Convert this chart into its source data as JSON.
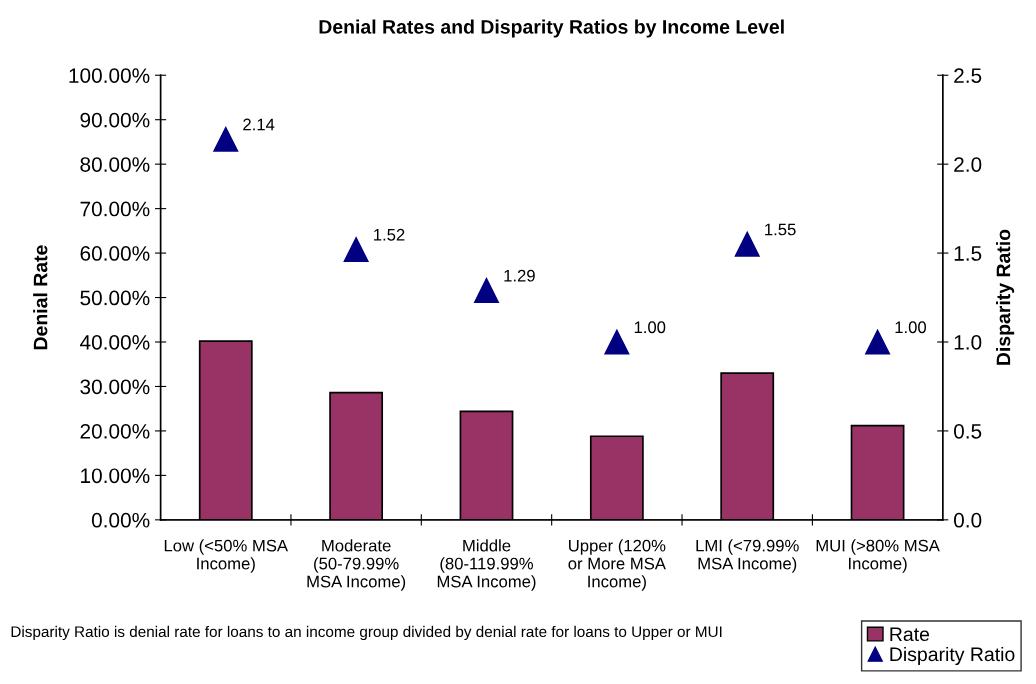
{
  "chart_data": {
    "type": "bar",
    "title": "Denial Rates and Disparity Ratios by Income Level",
    "categories": [
      "Low (<50% MSA Income)",
      "Moderate (50-79.99% MSA Income)",
      "Middle (80-119.99% MSA Income)",
      "Upper (120% or More MSA Income)",
      "LMI (<79.99% MSA Income)",
      "MUI (>80% MSA Income)"
    ],
    "series": [
      {
        "name": "Rate",
        "color": "#993366",
        "values": [
          40.2,
          28.6,
          24.4,
          18.8,
          33.0,
          21.2
        ]
      },
      {
        "name": "Disparity Ratio",
        "type": "scatter",
        "axis": "y2",
        "marker": "triangle",
        "color": "#000080",
        "values": [
          2.14,
          1.52,
          1.29,
          1.0,
          1.55,
          1.0
        ],
        "value_labels": [
          "2.14",
          "1.52",
          "1.29",
          "1.00",
          "1.55",
          "1.00"
        ]
      }
    ],
    "ylabel": "Denial Rate",
    "y2label": "Disparity Ratio",
    "ylim": [
      0,
      100
    ],
    "yticks": [
      {
        "value": 0,
        "label": "0.00%"
      },
      {
        "value": 10,
        "label": "10.00%"
      },
      {
        "value": 20,
        "label": "20.00%"
      },
      {
        "value": 30,
        "label": "30.00%"
      },
      {
        "value": 40,
        "label": "40.00%"
      },
      {
        "value": 50,
        "label": "50.00%"
      },
      {
        "value": 60,
        "label": "60.00%"
      },
      {
        "value": 70,
        "label": "70.00%"
      },
      {
        "value": 80,
        "label": "80.00%"
      },
      {
        "value": 90,
        "label": "90.00%"
      },
      {
        "value": 100,
        "label": "100.00%"
      }
    ],
    "y2lim": [
      0,
      2.5
    ],
    "y2ticks": [
      {
        "value": 0,
        "label": "0.0"
      },
      {
        "value": 0.5,
        "label": "0.5"
      },
      {
        "value": 1.0,
        "label": "1.0"
      },
      {
        "value": 1.5,
        "label": "1.5"
      },
      {
        "value": 2.0,
        "label": "2.0"
      },
      {
        "value": 2.5,
        "label": "2.5"
      }
    ],
    "grid": false,
    "legend": "bottom right",
    "annotations": [
      "Disparity Ratio is denial rate for loans to an income group divided by denial rate for loans to Upper or MUI"
    ]
  }
}
